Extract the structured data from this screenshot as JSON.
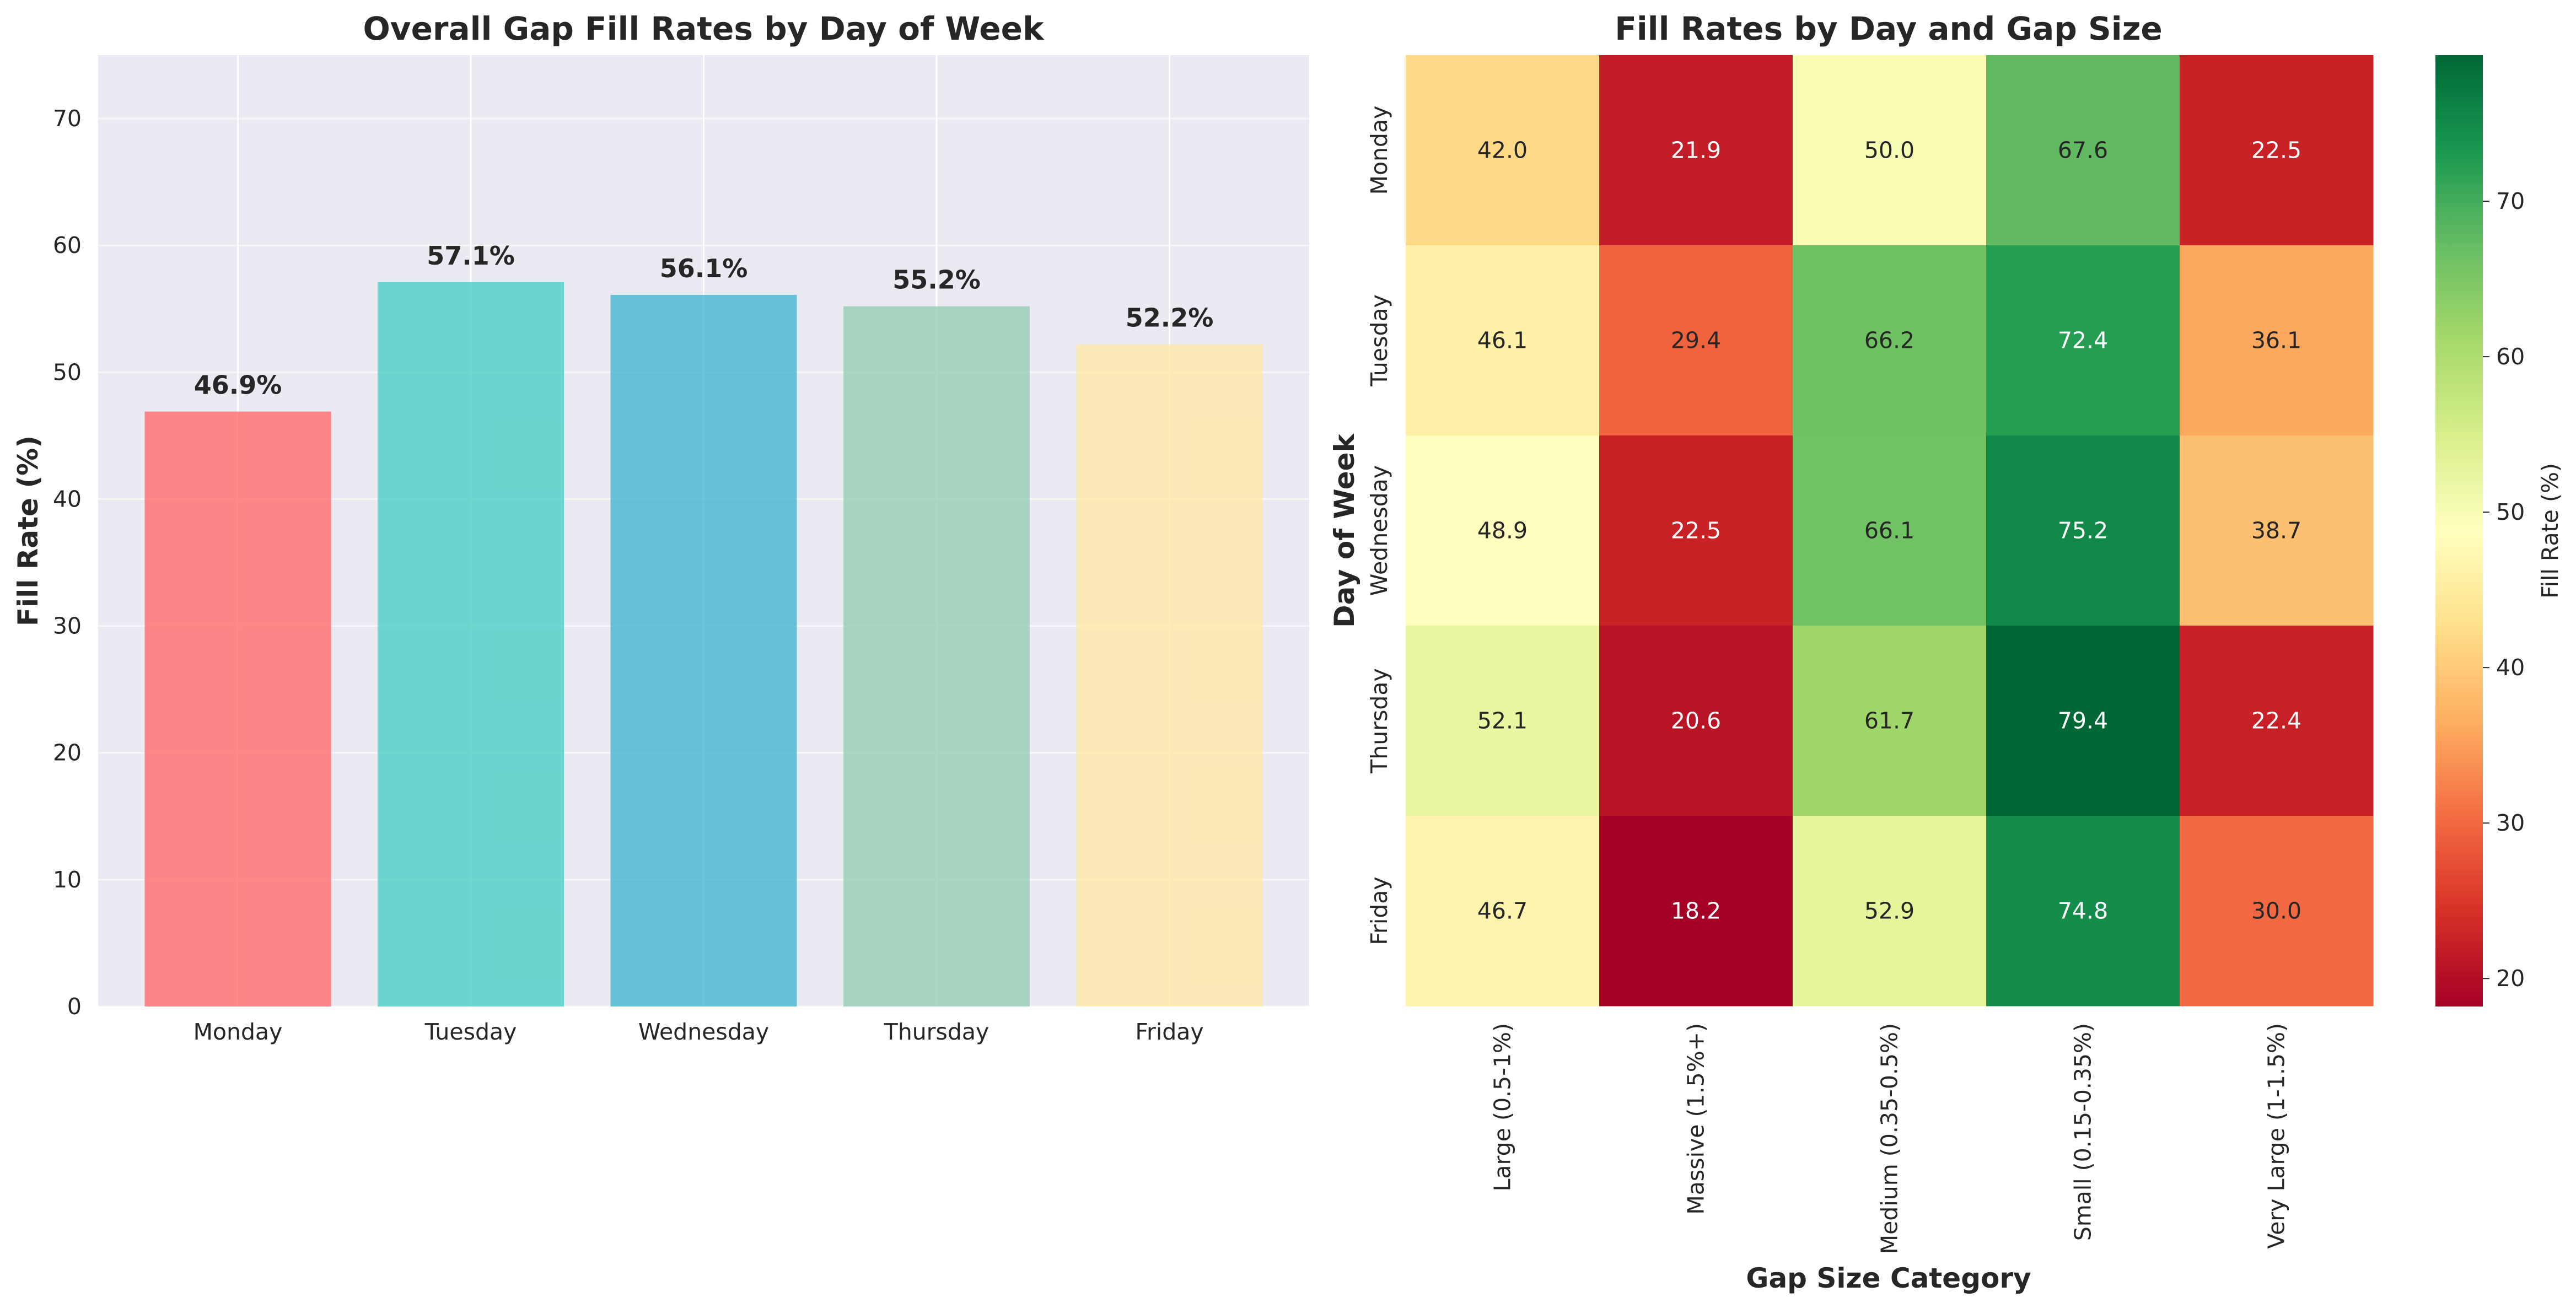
{
  "chart_data": [
    {
      "type": "bar",
      "title": "Overall Gap Fill Rates by Day of Week",
      "xlabel": "",
      "ylabel": "Fill Rate (%)",
      "categories": [
        "Monday",
        "Tuesday",
        "Wednesday",
        "Thursday",
        "Friday"
      ],
      "values": [
        46.9,
        57.1,
        56.1,
        55.2,
        52.2
      ],
      "value_labels": [
        "46.9%",
        "57.1%",
        "56.1%",
        "55.2%",
        "52.2%"
      ],
      "colors": [
        "#ff6b6b",
        "#4ecdc4",
        "#45b7d1",
        "#96ceb4",
        "#ffeaa7"
      ],
      "ylim": [
        0,
        75
      ],
      "yticks": [
        0,
        10,
        20,
        30,
        40,
        50,
        60,
        70
      ],
      "grid": true,
      "background": "#eaeaf2"
    },
    {
      "type": "heatmap",
      "title": "Fill Rates by Day and Gap Size",
      "xlabel": "Gap Size Category",
      "ylabel": "Day of Week",
      "x": [
        "Large (0.5-1%)",
        "Massive (1.5%+)",
        "Medium (0.35-0.5%)",
        "Small (0.15-0.35%)",
        "Very Large (1-1.5%)"
      ],
      "y": [
        "Monday",
        "Tuesday",
        "Wednesday",
        "Thursday",
        "Friday"
      ],
      "values": [
        [
          42.0,
          21.9,
          50.0,
          67.6,
          22.5
        ],
        [
          46.1,
          29.4,
          66.2,
          72.4,
          36.1
        ],
        [
          48.9,
          22.5,
          66.1,
          75.2,
          38.7
        ],
        [
          52.1,
          20.6,
          61.7,
          79.4,
          22.4
        ],
        [
          46.7,
          18.2,
          52.9,
          74.8,
          30.0
        ]
      ],
      "colormap": "RdYlGn",
      "colorbar": {
        "label": "Fill Rate (%)",
        "ticks": [
          20,
          30,
          40,
          50,
          60,
          70
        ],
        "range": [
          18.2,
          79.4
        ]
      }
    }
  ]
}
